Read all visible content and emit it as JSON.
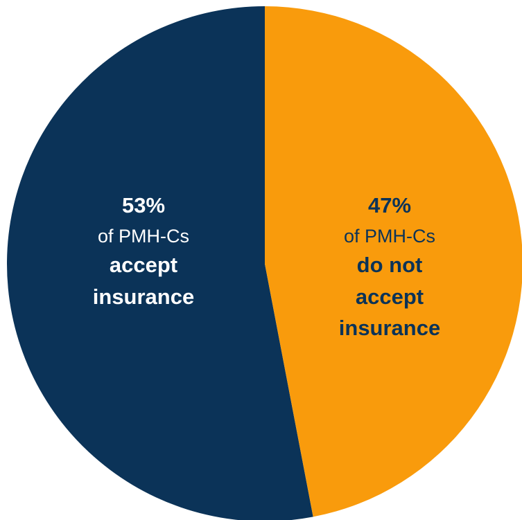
{
  "chart_data": {
    "type": "pie",
    "slices": [
      {
        "value": 53,
        "color": "#0b3358",
        "text_color": "#ffffff",
        "label_percent": "53%",
        "label_sub": "of PMH-Cs",
        "label_desc": [
          "accept",
          "insurance"
        ]
      },
      {
        "value": 47,
        "color": "#f99b0c",
        "text_color": "#0b3358",
        "label_percent": "47%",
        "label_sub": "of PMH-Cs",
        "label_desc": [
          "do not",
          "accept",
          "insurance"
        ]
      }
    ],
    "start": "12 o'clock",
    "direction": "counterclockwise",
    "legend": "none"
  }
}
